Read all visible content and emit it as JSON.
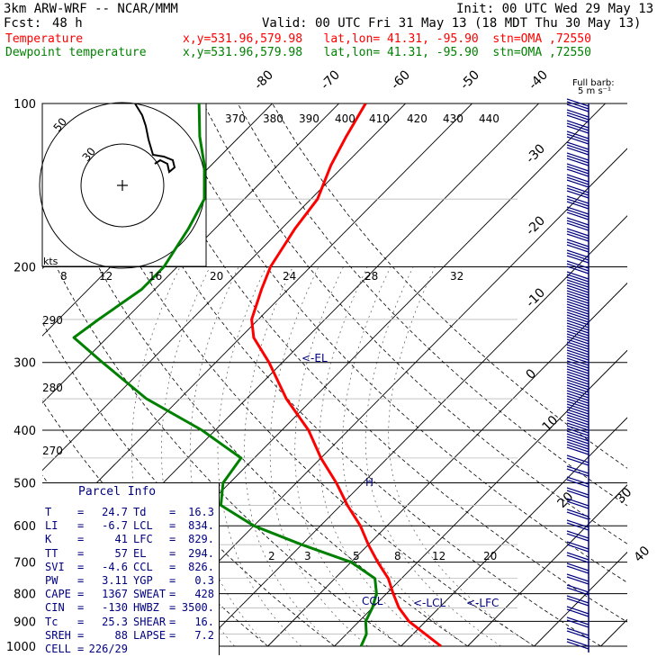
{
  "header": {
    "model": "3km ARW-WRF -- NCAR/MMM",
    "init": "Init: 00 UTC Wed 29 May 13",
    "fcst_label": "Fcst:",
    "fcst_value": "48 h",
    "valid": "Valid: 00 UTC Fri 31 May 13 (18 MDT Thu 30 May 13)",
    "temp_label": "Temperature",
    "temp_info": "x,y=531.96,579.98   lat,lon= 41.31, -95.90  stn=OMA ,72550",
    "dew_label": "Dewpoint temperature",
    "dew_info": "x,y=531.96,579.98   lat,lon= 41.31, -95.90  stn=OMA ,72550"
  },
  "colors": {
    "temperature": "#ff0000",
    "dewpoint": "#008000",
    "axes": "#000000",
    "info_text": "#000080",
    "wind_barbs": "#000080"
  },
  "chart_data": {
    "type": "skew-t",
    "pressure_levels": [
      100,
      200,
      300,
      400,
      500,
      600,
      700,
      800,
      900,
      1000
    ],
    "pressure_tick_labels": [
      "100",
      "200",
      "300",
      "400",
      "500",
      "600",
      "700",
      "800",
      "900",
      "1000"
    ],
    "isotherm_labels_top": [
      "-80",
      "-70",
      "-60",
      "-50",
      "-40"
    ],
    "isotherm_labels_right": [
      "-30",
      "-20",
      "-10",
      "0",
      "10",
      "20",
      "30",
      "40"
    ],
    "theta_e_labels": [
      "370",
      "380",
      "390",
      "400",
      "410",
      "420",
      "430",
      "440"
    ],
    "hodograph_speed_labels": [
      "8",
      "12",
      "16",
      "20",
      "24",
      "28",
      "32"
    ],
    "theta_labels_left": [
      "290",
      "280",
      "270"
    ],
    "mixing_ratio_labels": [
      "2",
      "3",
      "5",
      "8",
      "12",
      "20"
    ],
    "hodograph_ring_labels": [
      "50",
      "30"
    ],
    "kts_label": "kts",
    "barb_title": "Full barb:",
    "barb_unit": "5 m s⁻¹",
    "el_marker": "<-EL",
    "lfc_marker": "<-LFC",
    "lcl_marker": "<-LCL",
    "ccl_marker": "CCL",
    "h_marker": "H",
    "temperature_profile": {
      "name": "Temperature",
      "points": [
        {
          "p": 1000,
          "t": 26
        },
        {
          "p": 900,
          "t": 17.5
        },
        {
          "p": 850,
          "t": 14
        },
        {
          "p": 800,
          "t": 11
        },
        {
          "p": 750,
          "t": 8
        },
        {
          "p": 700,
          "t": 4
        },
        {
          "p": 650,
          "t": 0
        },
        {
          "p": 600,
          "t": -4
        },
        {
          "p": 550,
          "t": -9
        },
        {
          "p": 500,
          "t": -14
        },
        {
          "p": 450,
          "t": -20
        },
        {
          "p": 400,
          "t": -26
        },
        {
          "p": 350,
          "t": -34
        },
        {
          "p": 300,
          "t": -42
        },
        {
          "p": 270,
          "t": -48
        },
        {
          "p": 250,
          "t": -51
        },
        {
          "p": 220,
          "t": -54
        },
        {
          "p": 200,
          "t": -56
        },
        {
          "p": 170,
          "t": -58
        },
        {
          "p": 150,
          "t": -59
        },
        {
          "p": 130,
          "t": -62
        },
        {
          "p": 115,
          "t": -64
        },
        {
          "p": 100,
          "t": -66
        }
      ]
    },
    "dewpoint_profile": {
      "name": "Dewpoint temperature",
      "points": [
        {
          "p": 1000,
          "t": 14
        },
        {
          "p": 950,
          "t": 13
        },
        {
          "p": 900,
          "t": 11
        },
        {
          "p": 850,
          "t": 10
        },
        {
          "p": 800,
          "t": 8.5
        },
        {
          "p": 750,
          "t": 6
        },
        {
          "p": 700,
          "t": 0
        },
        {
          "p": 650,
          "t": -10
        },
        {
          "p": 600,
          "t": -20
        },
        {
          "p": 550,
          "t": -28
        },
        {
          "p": 500,
          "t": -31
        },
        {
          "p": 450,
          "t": -32
        },
        {
          "p": 400,
          "t": -42
        },
        {
          "p": 350,
          "t": -55
        },
        {
          "p": 300,
          "t": -67
        },
        {
          "p": 270,
          "t": -75
        },
        {
          "p": 250,
          "t": -74
        },
        {
          "p": 220,
          "t": -72
        },
        {
          "p": 200,
          "t": -72
        },
        {
          "p": 170,
          "t": -74
        },
        {
          "p": 150,
          "t": -76
        },
        {
          "p": 130,
          "t": -81
        },
        {
          "p": 115,
          "t": -86
        },
        {
          "p": 100,
          "t": -91
        }
      ]
    }
  },
  "parcel_info": {
    "title": "Parcel Info",
    "rows": [
      {
        "k1": "T",
        "v1": "24.7",
        "k2": "Td",
        "v2": "16.3"
      },
      {
        "k1": "LI",
        "v1": "-6.7",
        "k2": "LCL",
        "v2": "834."
      },
      {
        "k1": "K",
        "v1": "41",
        "k2": "LFC",
        "v2": "829."
      },
      {
        "k1": "TT",
        "v1": "57",
        "k2": "EL",
        "v2": "294."
      },
      {
        "k1": "SVI",
        "v1": "-4.6",
        "k2": "CCL",
        "v2": "826."
      },
      {
        "k1": "PW",
        "v1": "3.11",
        "k2": "YGP",
        "v2": "0.3"
      },
      {
        "k1": "CAPE",
        "v1": "1367",
        "k2": "SWEAT",
        "v2": "428"
      },
      {
        "k1": "CIN",
        "v1": "-130",
        "k2": "HWBZ",
        "v2": "3500."
      },
      {
        "k1": "Tc",
        "v1": "25.3",
        "k2": "SHEAR",
        "v2": "16."
      },
      {
        "k1": "SREH",
        "v1": "88",
        "k2": "LAPSE",
        "v2": "7.2"
      },
      {
        "k1": "CELL",
        "v1": "226/29",
        "k2": "",
        "v2": ""
      }
    ]
  }
}
